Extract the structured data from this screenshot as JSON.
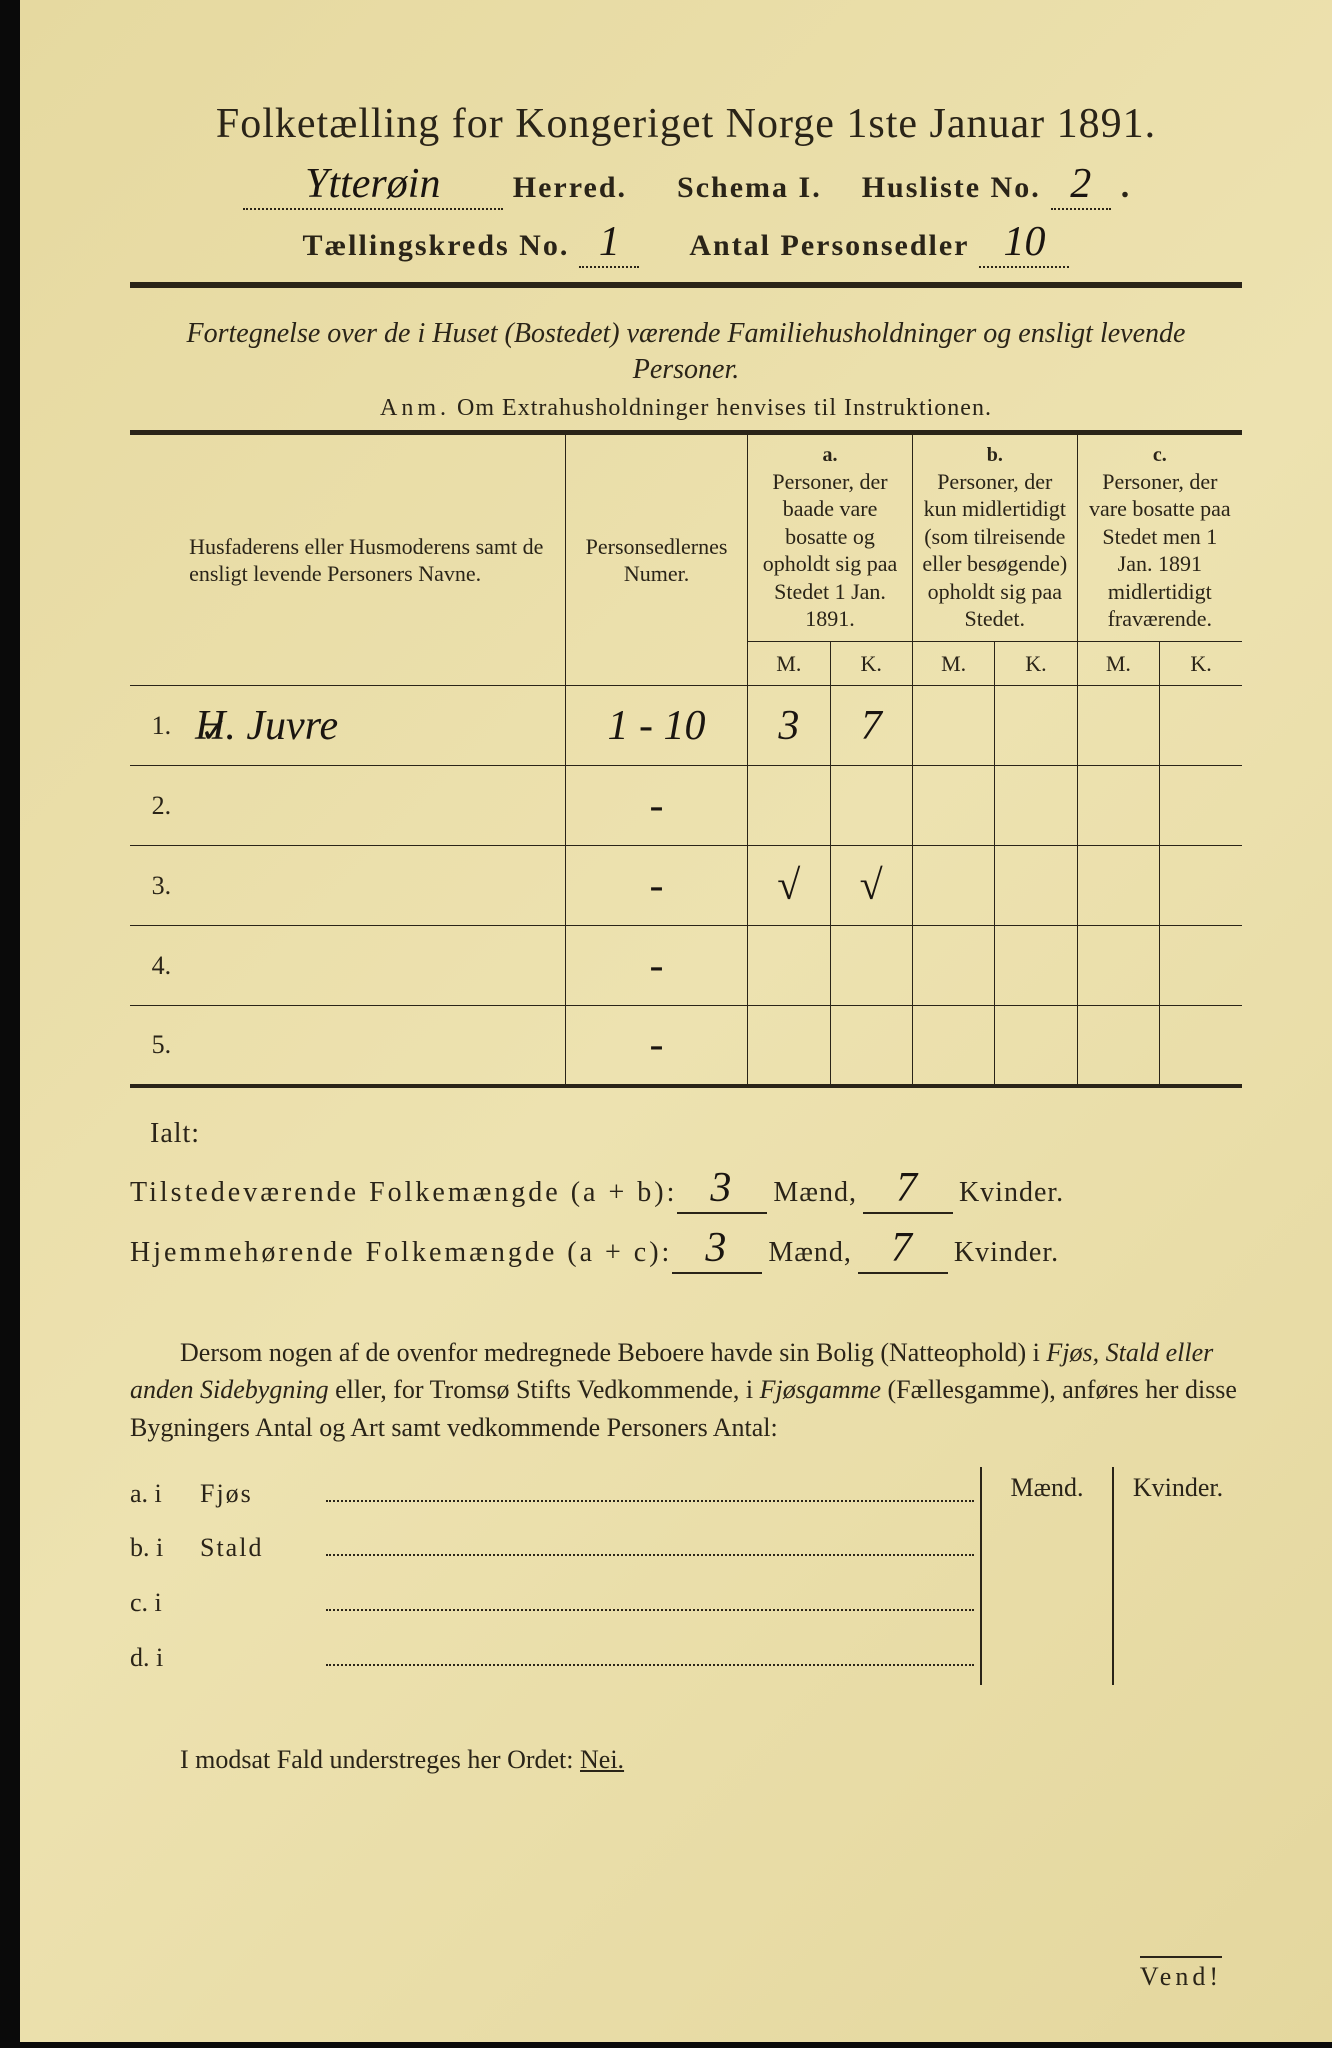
{
  "title": "Folketælling for Kongeriget Norge 1ste Januar 1891.",
  "header": {
    "herred_handwritten": "Ytterøin",
    "herred_label": "Herred.",
    "schema_label": "Schema I.",
    "husliste_label": "Husliste No.",
    "husliste_no": "2",
    "kreds_label": "Tællingskreds No.",
    "kreds_no": "1",
    "antal_label": "Antal Personsedler",
    "antal_no": "10"
  },
  "intro_line": "Fortegnelse over de i Huset (Bostedet) værende Familiehusholdninger og ensligt levende Personer.",
  "anm_label": "Anm.",
  "anm_text": "Om Extrahusholdninger henvises til Instruktionen.",
  "columns": {
    "name_header": "Husfaderens eller Husmoderens samt de ensligt levende Personers Navne.",
    "numer_header": "Personsedlernes Numer.",
    "a_label": "a.",
    "a_header": "Personer, der baade vare bosatte og opholdt sig paa Stedet 1 Jan. 1891.",
    "b_label": "b.",
    "b_header": "Personer, der kun midlertidigt (som tilreisende eller besøgende) opholdt sig paa Stedet.",
    "c_label": "c.",
    "c_header": "Personer, der vare bosatte paa Stedet men 1 Jan. 1891 midlertidigt fraværende.",
    "m": "M.",
    "k": "K."
  },
  "rows": [
    {
      "n": "1.",
      "name": "H. Juvre",
      "numer": "1 - 10",
      "a_m": "3",
      "a_k": "7",
      "b_m": "",
      "b_k": "",
      "c_m": "",
      "c_k": "",
      "check": "✓"
    },
    {
      "n": "2.",
      "name": "",
      "numer": "-",
      "a_m": "",
      "a_k": "",
      "b_m": "",
      "b_k": "",
      "c_m": "",
      "c_k": "",
      "check": ""
    },
    {
      "n": "3.",
      "name": "",
      "numer": "-",
      "a_m": "√",
      "a_k": "√",
      "b_m": "",
      "b_k": "",
      "c_m": "",
      "c_k": "",
      "check": ""
    },
    {
      "n": "4.",
      "name": "",
      "numer": "-",
      "a_m": "",
      "a_k": "",
      "b_m": "",
      "b_k": "",
      "c_m": "",
      "c_k": "",
      "check": ""
    },
    {
      "n": "5.",
      "name": "",
      "numer": "-",
      "a_m": "",
      "a_k": "",
      "b_m": "",
      "b_k": "",
      "c_m": "",
      "c_k": "",
      "check": ""
    }
  ],
  "ialt_label": "Ialt:",
  "totals": {
    "present_label": "Tilstedeværende Folkemængde (a + b):",
    "home_label": "Hjemmehørende Folkemængde (a + c):",
    "maend_label": "Mænd,",
    "kvinder_label": "Kvinder.",
    "present_m": "3",
    "present_k": "7",
    "home_m": "3",
    "home_k": "7"
  },
  "paragraph": {
    "t1": "Dersom nogen af de ovenfor medregnede Beboere havde sin Bolig (Natteophold) i ",
    "i1": "Fjøs, Stald eller anden Sidebygning",
    "t2": " eller, for Tromsø Stifts Vedkommende, i ",
    "i2": "Fjøsgamme",
    "t3": " (Fællesgamme), anføres her disse Bygningers Antal og Art samt vedkommende Personers Antal:"
  },
  "buildings": {
    "maend": "Mænd.",
    "kvinder": "Kvinder.",
    "rows": [
      {
        "lab": "a. i",
        "name": "Fjøs"
      },
      {
        "lab": "b. i",
        "name": "Stald"
      },
      {
        "lab": "c. i",
        "name": ""
      },
      {
        "lab": "d. i",
        "name": ""
      }
    ]
  },
  "footer": "I modsat Fald understreges her Ordet: ",
  "footer_nei": "Nei.",
  "vend": "Vend!",
  "style": {
    "paper_color": "#e8dda8",
    "ink_color": "#2a2418",
    "border_dark": "#0a0a0a"
  }
}
